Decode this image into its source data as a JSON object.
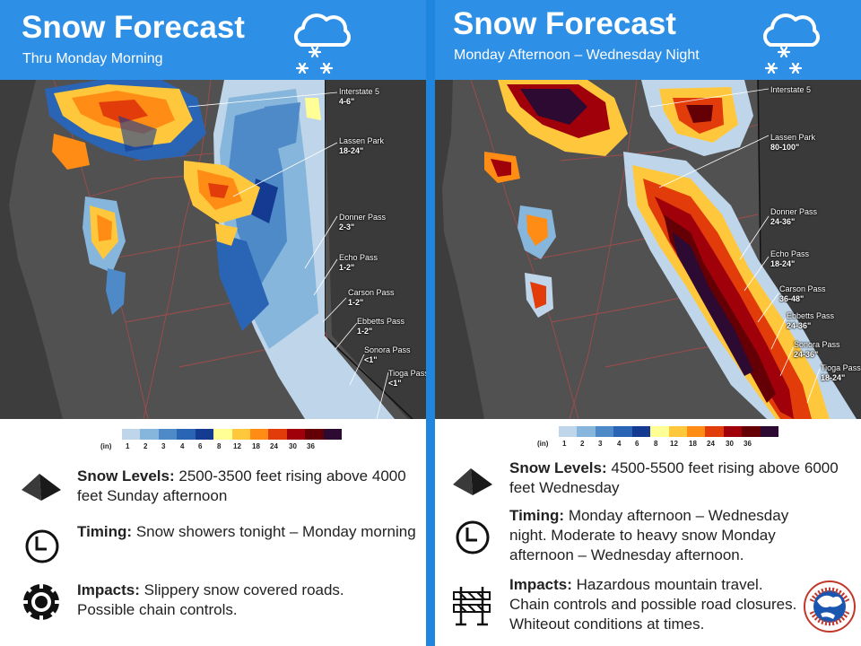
{
  "colors": {
    "header_blue": "#2e8fe6",
    "divider_blue": "#1f86e0",
    "map_background": "#515151",
    "snow_scale": [
      "#bfd6ea",
      "#86b6dc",
      "#4f8ac8",
      "#2a64b4",
      "#153a92",
      "#ffff96",
      "#ffc83c",
      "#ff8c14",
      "#e13c0a",
      "#a0000a",
      "#640005",
      "#2d0a32"
    ]
  },
  "left": {
    "title": "Snow Forecast",
    "subtitle": "Thru Monday Morning",
    "icon": "snow-cloud-icon",
    "legend": {
      "unit": "(in)",
      "ticks": [
        "1",
        "2",
        "3",
        "4",
        "6",
        "8",
        "12",
        "18",
        "24",
        "30",
        "36"
      ]
    },
    "locations": [
      {
        "name": "Interstate 5",
        "amount": "4-6\""
      },
      {
        "name": "Lassen Park",
        "amount": "18-24\""
      },
      {
        "name": "Donner Pass",
        "amount": "2-3\""
      },
      {
        "name": "Echo Pass",
        "amount": "1-2\""
      },
      {
        "name": "Carson Pass",
        "amount": "1-2\""
      },
      {
        "name": "Ebbetts Pass",
        "amount": "1-2\""
      },
      {
        "name": "Sonora Pass",
        "amount": "<1\""
      },
      {
        "name": "Tioga Pass",
        "amount": "<1\""
      }
    ],
    "snow_levels": {
      "label": "Snow Levels:",
      "text": "2500-3500 feet rising above 4000 feet Sunday afternoon"
    },
    "timing": {
      "label": "Timing:",
      "text": "Snow showers tonight – Monday morning"
    },
    "impacts": {
      "label": "Impacts:",
      "text": "Slippery snow covered roads. Possible chain controls."
    }
  },
  "right": {
    "title": "Snow Forecast",
    "subtitle": "Monday Afternoon – Wednesday Night",
    "icon": "snow-cloud-icon",
    "legend": {
      "unit": "(in)",
      "ticks": [
        "1",
        "2",
        "3",
        "4",
        "6",
        "8",
        "12",
        "18",
        "24",
        "30",
        "36"
      ]
    },
    "locations": [
      {
        "name": "Interstate 5",
        "amount": ""
      },
      {
        "name": "Lassen Park",
        "amount": "80-100\""
      },
      {
        "name": "Donner Pass",
        "amount": "24-36\""
      },
      {
        "name": "Echo Pass",
        "amount": "18-24\""
      },
      {
        "name": "Carson Pass",
        "amount": "36-48\""
      },
      {
        "name": "Ebbetts Pass",
        "amount": "24-36\""
      },
      {
        "name": "Sonora Pass",
        "amount": "24-36\""
      },
      {
        "name": "Tioga Pass",
        "amount": "18-24\""
      }
    ],
    "snow_levels": {
      "label": "Snow Levels:",
      "text": "4500-5500 feet rising above 6000 feet Wednesday"
    },
    "timing": {
      "label": "Timing:",
      "text": "Monday afternoon – Wednesday night. Moderate to heavy snow Monday afternoon – Wednesday afternoon."
    },
    "impacts": {
      "label": "Impacts:",
      "text": "Hazardous mountain travel. Chain controls and possible road closures. Whiteout conditions at times."
    }
  },
  "logo": {
    "text": "NATIONAL WEATHER SERVICE"
  }
}
